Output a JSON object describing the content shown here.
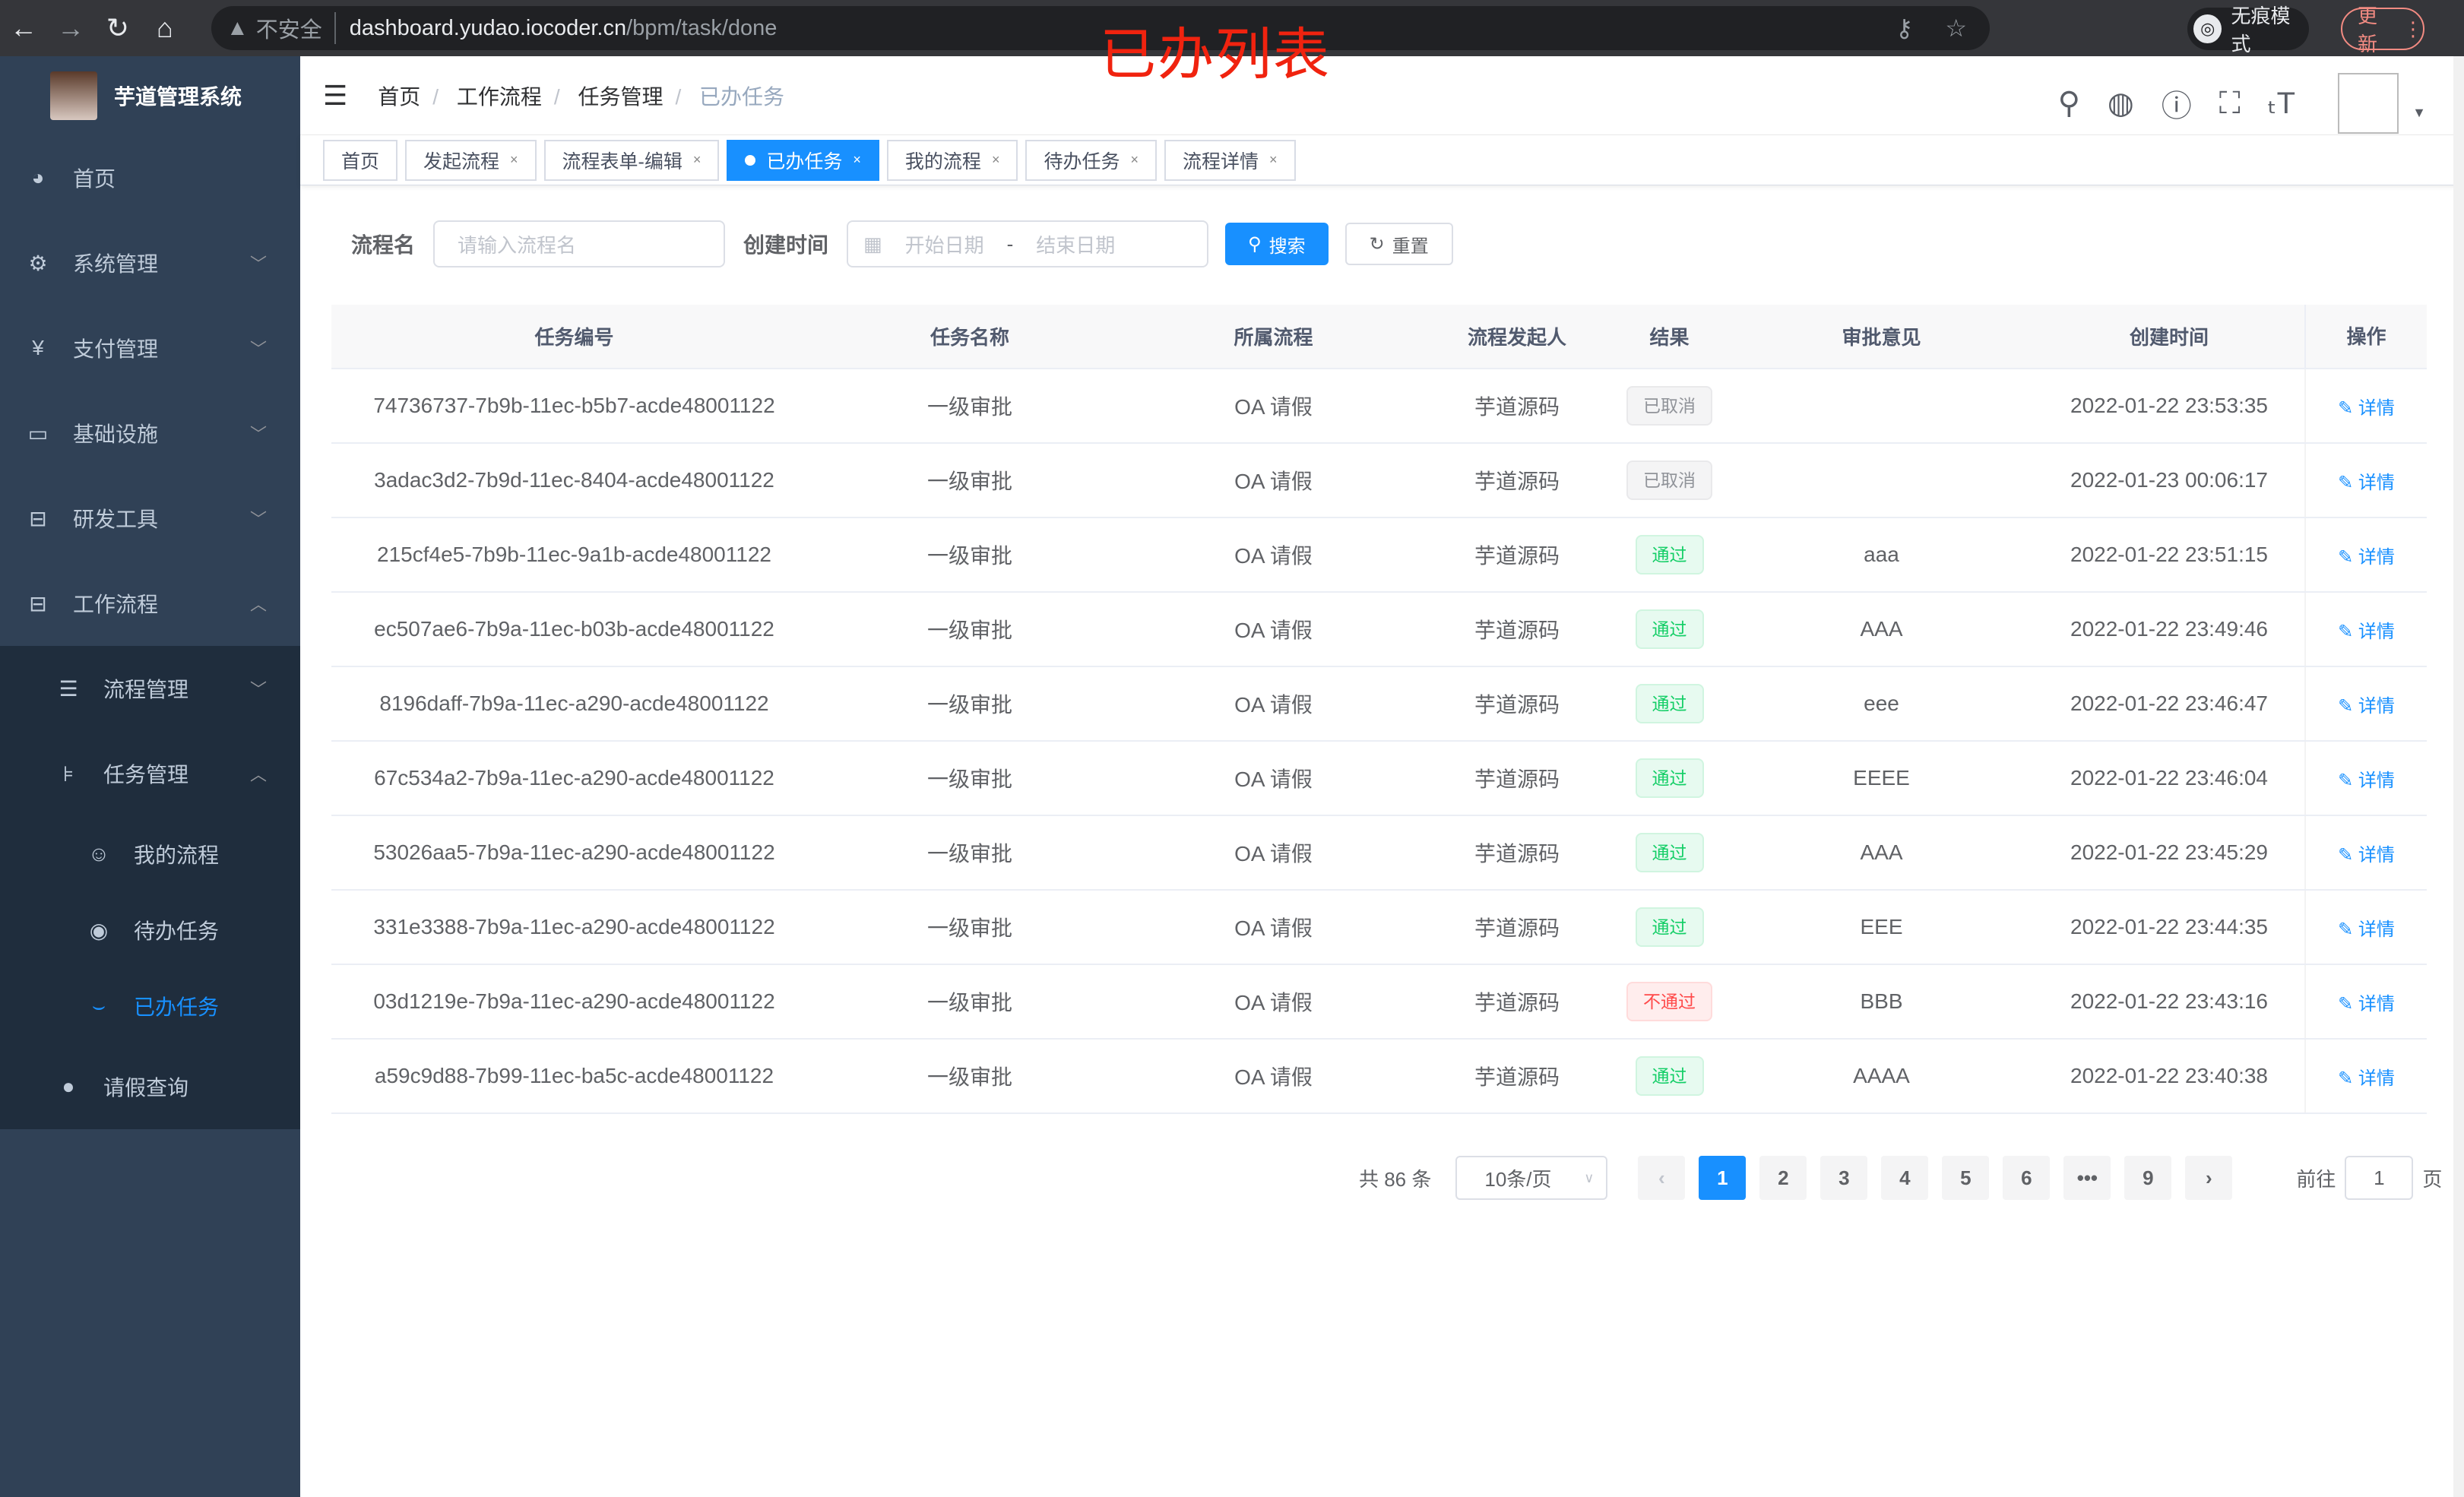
{
  "browser": {
    "insecure": "不安全",
    "url_host": "dashboard.yudao.iocoder.cn",
    "url_path": "/bpm/task/done",
    "incognito": "无痕模式",
    "update": "更新"
  },
  "annotation": "已办列表",
  "sidebar": {
    "title": "芋道管理系统",
    "items": [
      {
        "label": "首页",
        "icon": "dashboard-icon"
      },
      {
        "label": "系统管理",
        "icon": "gear-icon"
      },
      {
        "label": "支付管理",
        "icon": "yen-icon"
      },
      {
        "label": "基础设施",
        "icon": "monitor-icon"
      },
      {
        "label": "研发工具",
        "icon": "toolbox-icon"
      },
      {
        "label": "工作流程",
        "icon": "toolbox-icon"
      },
      {
        "label": "流程管理",
        "icon": "list-icon"
      },
      {
        "label": "任务管理",
        "icon": "tree-icon"
      },
      {
        "label": "我的流程",
        "icon": "people-icon"
      },
      {
        "label": "待办任务",
        "icon": "eye-icon"
      },
      {
        "label": "已办任务",
        "icon": "eye-closed-icon"
      },
      {
        "label": "请假查询",
        "icon": "user-icon"
      }
    ]
  },
  "breadcrumb": [
    "首页",
    "工作流程",
    "任务管理",
    "已办任务"
  ],
  "tags": [
    {
      "label": "首页"
    },
    {
      "label": "发起流程"
    },
    {
      "label": "流程表单-编辑"
    },
    {
      "label": "已办任务",
      "active": true
    },
    {
      "label": "我的流程"
    },
    {
      "label": "待办任务"
    },
    {
      "label": "流程详情"
    }
  ],
  "search": {
    "name_label": "流程名",
    "name_placeholder": "请输入流程名",
    "time_label": "创建时间",
    "start_placeholder": "开始日期",
    "range_sep": "-",
    "end_placeholder": "结束日期",
    "search_btn": "搜索",
    "reset_btn": "重置"
  },
  "table": {
    "columns": [
      "任务编号",
      "任务名称",
      "所属流程",
      "流程发起人",
      "结果",
      "审批意见",
      "创建时间",
      "操作"
    ],
    "rows": [
      {
        "id": "74736737-7b9b-11ec-b5b7-acde48001122",
        "name": "一级审批",
        "process": "OA 请假",
        "starter": "芋道源码",
        "result": "已取消",
        "status": "cancel",
        "comment": "",
        "time": "2022-01-22 23:53:35",
        "action": "详情"
      },
      {
        "id": "3adac3d2-7b9d-11ec-8404-acde48001122",
        "name": "一级审批",
        "process": "OA 请假",
        "starter": "芋道源码",
        "result": "已取消",
        "status": "cancel",
        "comment": "",
        "time": "2022-01-23 00:06:17",
        "action": "详情"
      },
      {
        "id": "215cf4e5-7b9b-11ec-9a1b-acde48001122",
        "name": "一级审批",
        "process": "OA 请假",
        "starter": "芋道源码",
        "result": "通过",
        "status": "pass",
        "comment": "aaa",
        "time": "2022-01-22 23:51:15",
        "action": "详情"
      },
      {
        "id": "ec507ae6-7b9a-11ec-b03b-acde48001122",
        "name": "一级审批",
        "process": "OA 请假",
        "starter": "芋道源码",
        "result": "通过",
        "status": "pass",
        "comment": "AAA",
        "time": "2022-01-22 23:49:46",
        "action": "详情"
      },
      {
        "id": "8196daff-7b9a-11ec-a290-acde48001122",
        "name": "一级审批",
        "process": "OA 请假",
        "starter": "芋道源码",
        "result": "通过",
        "status": "pass",
        "comment": "eee",
        "time": "2022-01-22 23:46:47",
        "action": "详情"
      },
      {
        "id": "67c534a2-7b9a-11ec-a290-acde48001122",
        "name": "一级审批",
        "process": "OA 请假",
        "starter": "芋道源码",
        "result": "通过",
        "status": "pass",
        "comment": "EEEE",
        "time": "2022-01-22 23:46:04",
        "action": "详情"
      },
      {
        "id": "53026aa5-7b9a-11ec-a290-acde48001122",
        "name": "一级审批",
        "process": "OA 请假",
        "starter": "芋道源码",
        "result": "通过",
        "status": "pass",
        "comment": "AAA",
        "time": "2022-01-22 23:45:29",
        "action": "详情"
      },
      {
        "id": "331e3388-7b9a-11ec-a290-acde48001122",
        "name": "一级审批",
        "process": "OA 请假",
        "starter": "芋道源码",
        "result": "通过",
        "status": "pass",
        "comment": "EEE",
        "time": "2022-01-22 23:44:35",
        "action": "详情"
      },
      {
        "id": "03d1219e-7b9a-11ec-a290-acde48001122",
        "name": "一级审批",
        "process": "OA 请假",
        "starter": "芋道源码",
        "result": "不通过",
        "status": "fail",
        "comment": "BBB",
        "time": "2022-01-22 23:43:16",
        "action": "详情"
      },
      {
        "id": "a59c9d88-7b99-11ec-ba5c-acde48001122",
        "name": "一级审批",
        "process": "OA 请假",
        "starter": "芋道源码",
        "result": "通过",
        "status": "pass",
        "comment": "AAAA",
        "time": "2022-01-22 23:40:38",
        "action": "详情"
      }
    ]
  },
  "pagination": {
    "total": "共 86 条",
    "page_size": "10条/页",
    "pages": [
      "1",
      "2",
      "3",
      "4",
      "5",
      "6",
      "•••",
      "9"
    ],
    "current": "1",
    "goto_label": "前往",
    "goto_value": "1",
    "page_suffix": "页"
  },
  "colors": {
    "primary": "#1890ff",
    "sidebar": "#304156",
    "submenu": "#1f2d3d",
    "annotation": "#f0230f"
  }
}
